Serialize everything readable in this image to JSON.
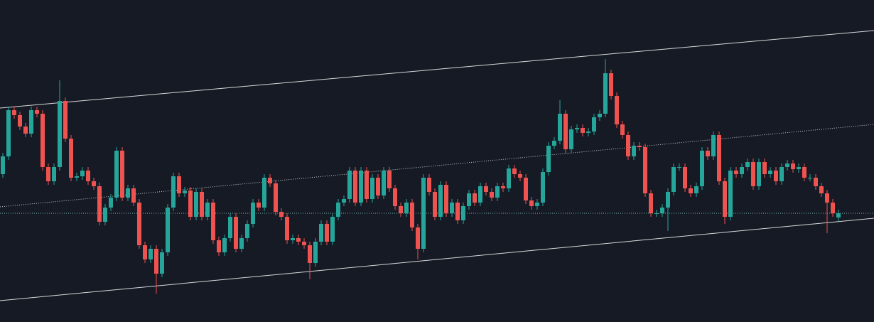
{
  "chart_data": {
    "type": "candlestick",
    "up_color": "#26a69a",
    "down_color": "#ef5350",
    "background": "#161a25",
    "ylim": [
      0,
      453
    ],
    "grid": false,
    "open": [
      208,
      233,
      298,
      291,
      275,
      265,
      298,
      293,
      218,
      198,
      218,
      311,
      258,
      203,
      205,
      213,
      198,
      191,
      141,
      161,
      175,
      241,
      175,
      188,
      168,
      108,
      88,
      103,
      68,
      98,
      161,
      205,
      181,
      185,
      148,
      183,
      148,
      168,
      115,
      98,
      118,
      148,
      103,
      118,
      138,
      168,
      161,
      203,
      195,
      155,
      148,
      115,
      118,
      113,
      108,
      83,
      113,
      138,
      113,
      148,
      168,
      173,
      213,
      168,
      213,
      173,
      203,
      178,
      213,
      188,
      163,
      153,
      168,
      133,
      103,
      203,
      183,
      148,
      193,
      153,
      168,
      143,
      163,
      181,
      168,
      191,
      183,
      175,
      191,
      188,
      216,
      208,
      203,
      171,
      163,
      168,
      211,
      248,
      255,
      293,
      243,
      271,
      273,
      266,
      268,
      288,
      293,
      350,
      318,
      278,
      263,
      233,
      248,
      246,
      181,
      153,
      153,
      161,
      183,
      218,
      218,
      188,
      181,
      191,
      241,
      233,
      263,
      198,
      148,
      213,
      208,
      218,
      225,
      191,
      225,
      208,
      213,
      198,
      218,
      223,
      215,
      218,
      203,
      203,
      191,
      181,
      168,
      147
    ],
    "high": [
      238,
      303,
      303,
      296,
      280,
      303,
      303,
      298,
      223,
      223,
      340,
      316,
      263,
      210,
      218,
      218,
      203,
      196,
      166,
      180,
      246,
      246,
      193,
      193,
      173,
      113,
      108,
      108,
      103,
      166,
      210,
      210,
      190,
      190,
      188,
      188,
      173,
      173,
      120,
      123,
      153,
      153,
      123,
      143,
      173,
      173,
      208,
      208,
      200,
      160,
      153,
      123,
      123,
      118,
      113,
      118,
      143,
      143,
      153,
      173,
      178,
      218,
      218,
      218,
      218,
      208,
      208,
      218,
      218,
      193,
      168,
      173,
      173,
      138,
      208,
      208,
      188,
      198,
      198,
      173,
      173,
      168,
      186,
      186,
      196,
      196,
      188,
      196,
      196,
      221,
      221,
      213,
      208,
      176,
      173,
      216,
      253,
      260,
      312,
      298,
      276,
      278,
      278,
      273,
      293,
      298,
      370,
      355,
      323,
      283,
      268,
      253,
      253,
      251,
      186,
      158,
      166,
      188,
      223,
      223,
      223,
      193,
      196,
      246,
      246,
      268,
      268,
      203,
      218,
      218,
      223,
      230,
      230,
      230,
      230,
      218,
      218,
      223,
      228,
      228,
      223,
      223,
      208,
      208,
      196,
      186,
      173,
      158
    ],
    "low": [
      203,
      228,
      286,
      270,
      260,
      260,
      288,
      213,
      193,
      193,
      213,
      253,
      198,
      198,
      200,
      193,
      186,
      136,
      136,
      156,
      170,
      170,
      170,
      163,
      103,
      83,
      83,
      40,
      63,
      93,
      156,
      176,
      176,
      143,
      143,
      143,
      143,
      110,
      93,
      93,
      113,
      98,
      98,
      113,
      133,
      156,
      156,
      190,
      150,
      143,
      110,
      110,
      108,
      103,
      60,
      78,
      108,
      108,
      108,
      143,
      163,
      168,
      163,
      163,
      168,
      168,
      173,
      173,
      183,
      158,
      148,
      148,
      128,
      88,
      98,
      178,
      143,
      143,
      148,
      148,
      138,
      138,
      158,
      163,
      163,
      178,
      170,
      170,
      183,
      183,
      203,
      198,
      166,
      158,
      158,
      163,
      206,
      243,
      250,
      238,
      238,
      266,
      261,
      261,
      263,
      283,
      288,
      313,
      273,
      258,
      228,
      228,
      241,
      176,
      148,
      148,
      148,
      128,
      178,
      213,
      183,
      176,
      176,
      186,
      228,
      228,
      193,
      138,
      143,
      203,
      203,
      213,
      186,
      186,
      203,
      203,
      193,
      193,
      213,
      210,
      210,
      198,
      198,
      186,
      176,
      125,
      148,
      142
    ],
    "close": [
      233,
      298,
      291,
      275,
      265,
      298,
      293,
      218,
      198,
      218,
      311,
      258,
      203,
      205,
      213,
      198,
      191,
      141,
      161,
      175,
      241,
      175,
      188,
      168,
      108,
      88,
      103,
      68,
      98,
      161,
      205,
      181,
      185,
      148,
      183,
      148,
      168,
      115,
      98,
      118,
      148,
      103,
      118,
      138,
      168,
      161,
      203,
      195,
      155,
      148,
      115,
      118,
      113,
      108,
      83,
      113,
      138,
      113,
      148,
      168,
      173,
      213,
      168,
      213,
      173,
      203,
      178,
      213,
      188,
      163,
      153,
      168,
      133,
      103,
      203,
      183,
      148,
      193,
      153,
      168,
      143,
      163,
      181,
      168,
      191,
      183,
      175,
      191,
      188,
      216,
      208,
      203,
      171,
      163,
      168,
      211,
      248,
      255,
      293,
      243,
      271,
      273,
      266,
      268,
      288,
      293,
      350,
      318,
      278,
      263,
      233,
      248,
      246,
      181,
      153,
      153,
      161,
      183,
      218,
      218,
      188,
      181,
      191,
      241,
      233,
      263,
      198,
      148,
      213,
      208,
      218,
      225,
      191,
      225,
      208,
      213,
      198,
      218,
      223,
      215,
      218,
      203,
      203,
      191,
      181,
      168,
      153,
      153
    ],
    "trendlines": [
      {
        "start": 301,
        "end": 410,
        "style": "solid",
        "color": "#d8d8d8"
      },
      {
        "start": 162,
        "end": 278,
        "style": "dotted",
        "color": "#c8c8c8"
      },
      {
        "start": 30,
        "end": 146,
        "style": "solid",
        "color": "#d8d8d8"
      },
      {
        "start": 153,
        "end": 153,
        "style": "dotted",
        "color": "#7fb5b0"
      }
    ]
  }
}
